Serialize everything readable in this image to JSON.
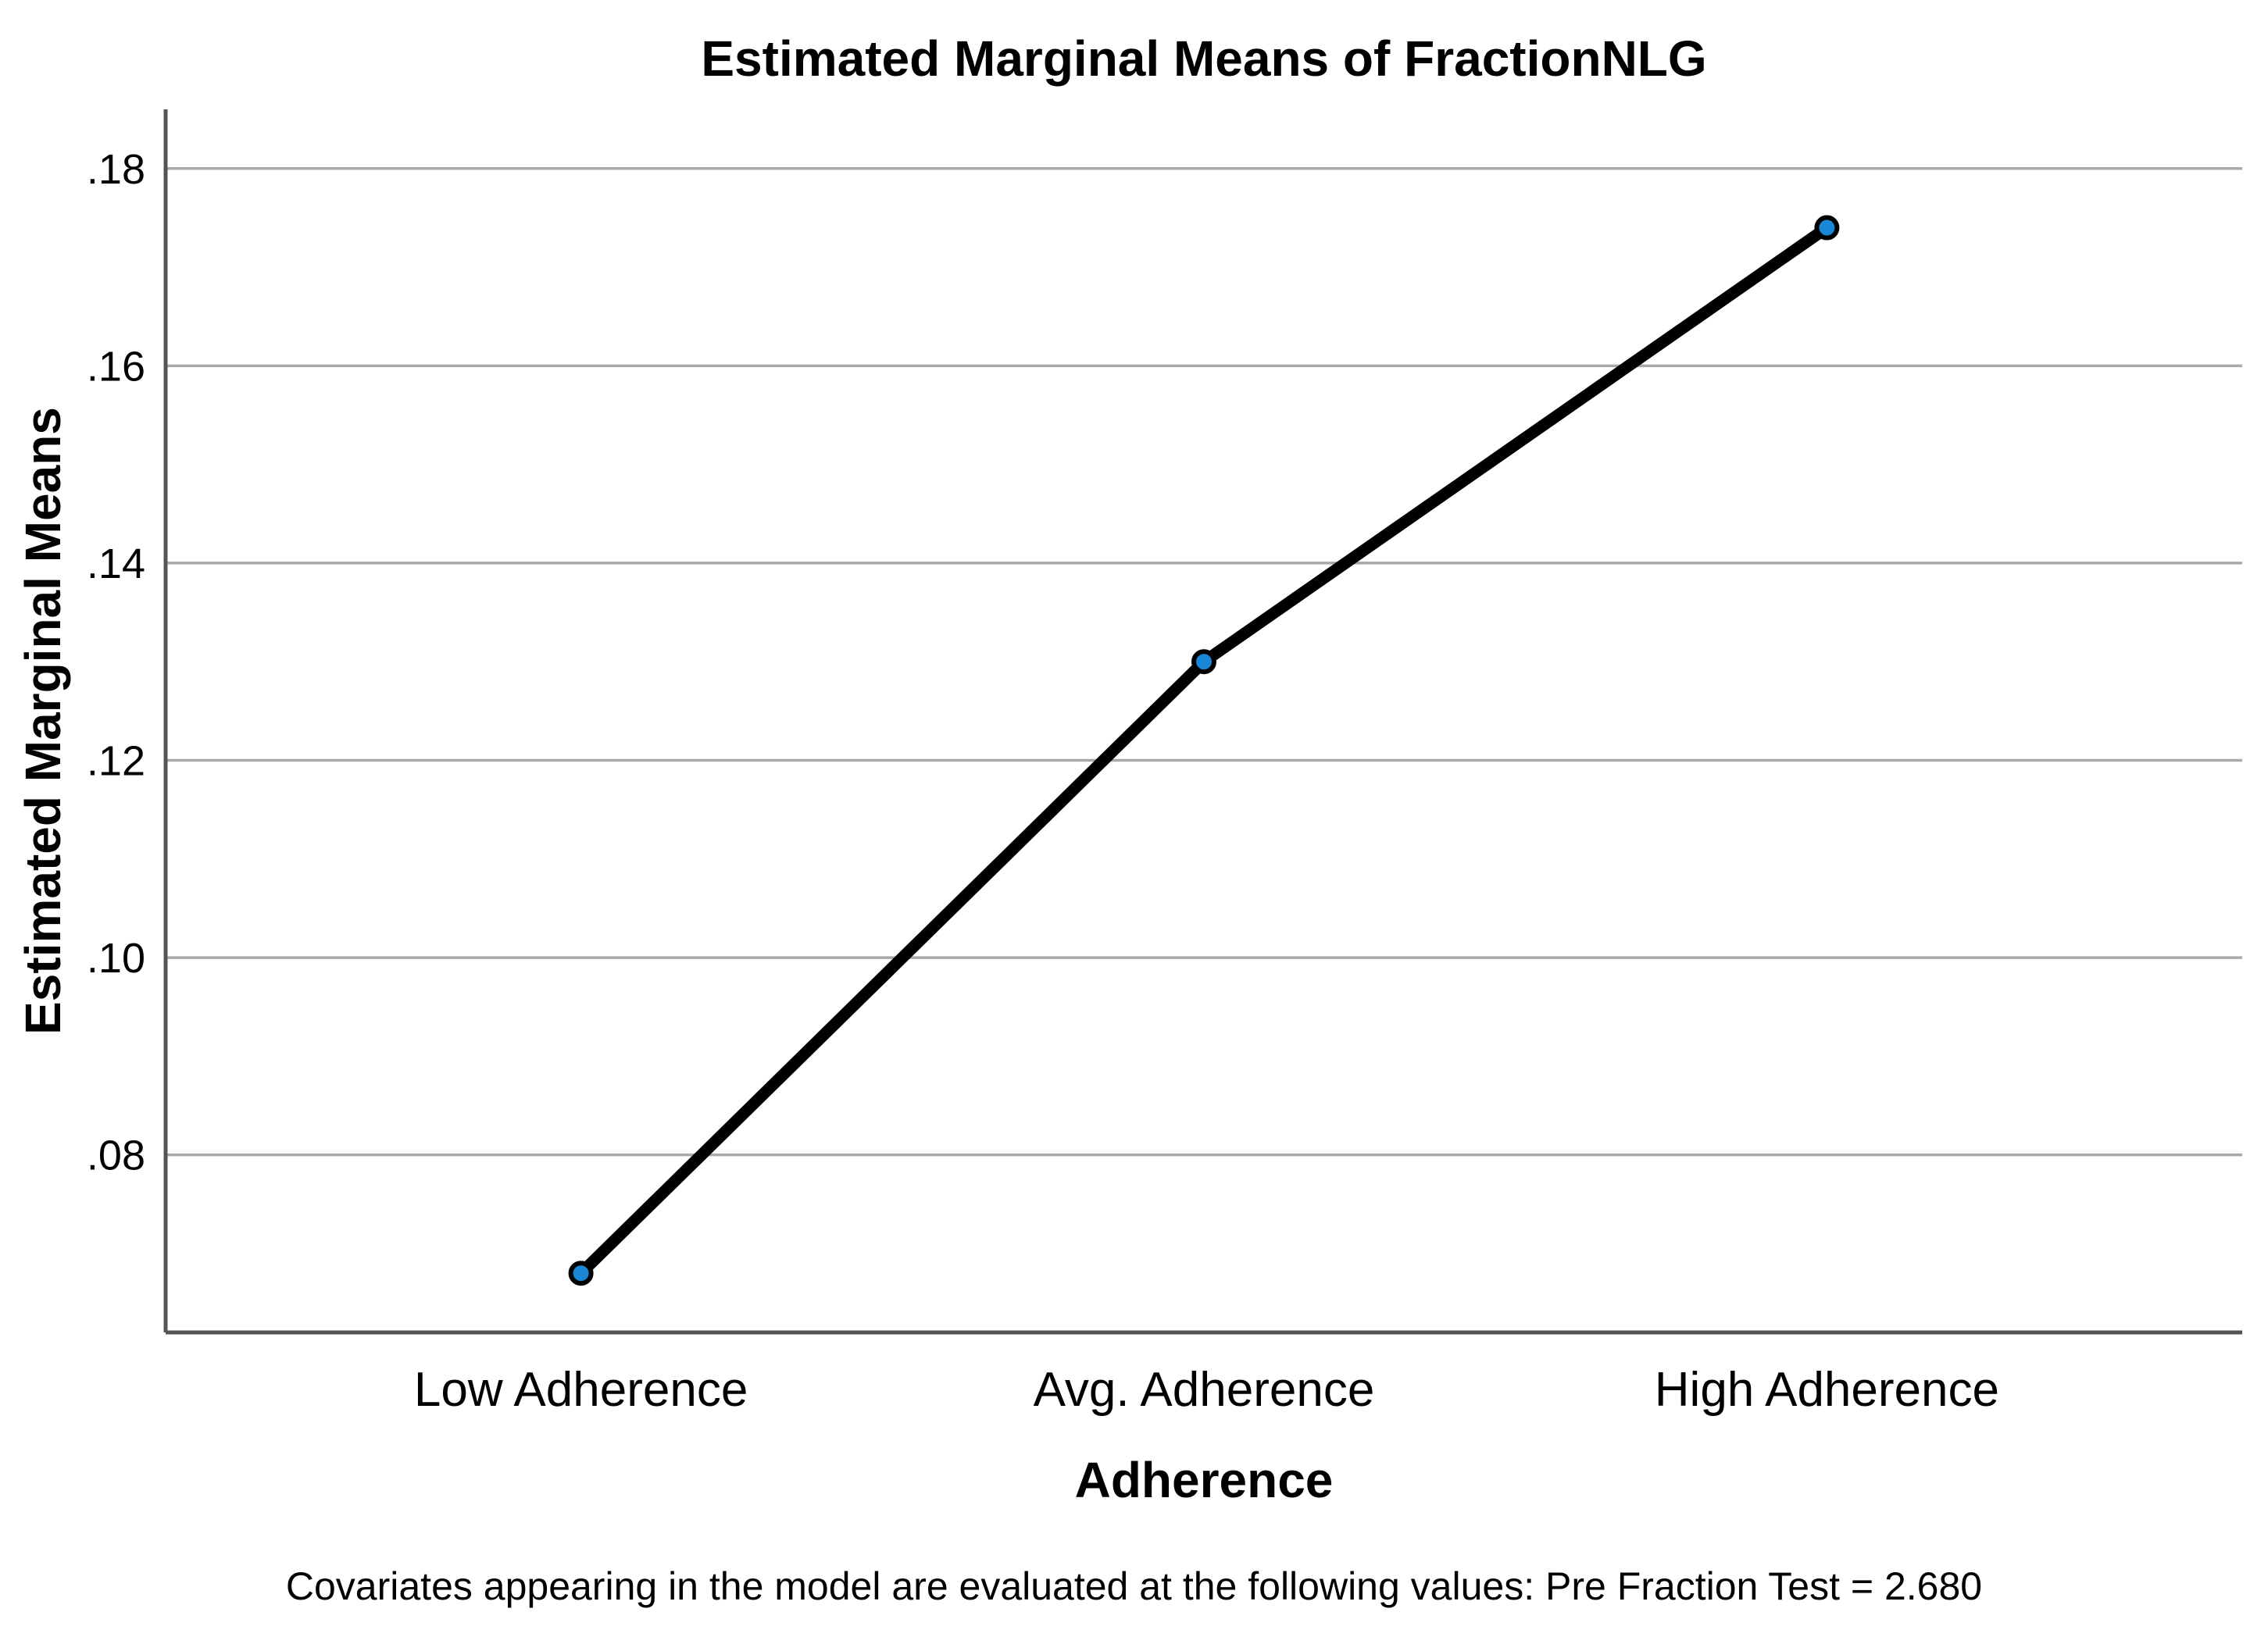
{
  "chart_data": {
    "type": "line",
    "title": "Estimated Marginal Means of FractionNLG",
    "xlabel": "Adherence",
    "ylabel": "Estimated Marginal Means",
    "footnote": "Covariates appearing in the model are evaluated at the following values: Pre Fraction Test = 2.680",
    "categories": [
      "Low Adherence",
      "Avg. Adherence",
      "High Adherence"
    ],
    "values": [
      0.068,
      0.13,
      0.174
    ],
    "category_positions": [
      0.2,
      0.5,
      0.8
    ],
    "yticks": [
      {
        "value": 0.08,
        "label": ".08"
      },
      {
        "value": 0.1,
        "label": ".10"
      },
      {
        "value": 0.12,
        "label": ".12"
      },
      {
        "value": 0.14,
        "label": ".14"
      },
      {
        "value": 0.16,
        "label": ".16"
      },
      {
        "value": 0.18,
        "label": ".18"
      }
    ],
    "ylim": [
      0.062,
      0.186
    ],
    "grid": "horizontal",
    "legend": "none",
    "line_color": "#000000",
    "marker_color": "#1987d6",
    "marker_outline_color": "#000000",
    "gridline_color": "#a9a9a9",
    "axis_color": "#555555",
    "background_color": "#ffffff"
  }
}
